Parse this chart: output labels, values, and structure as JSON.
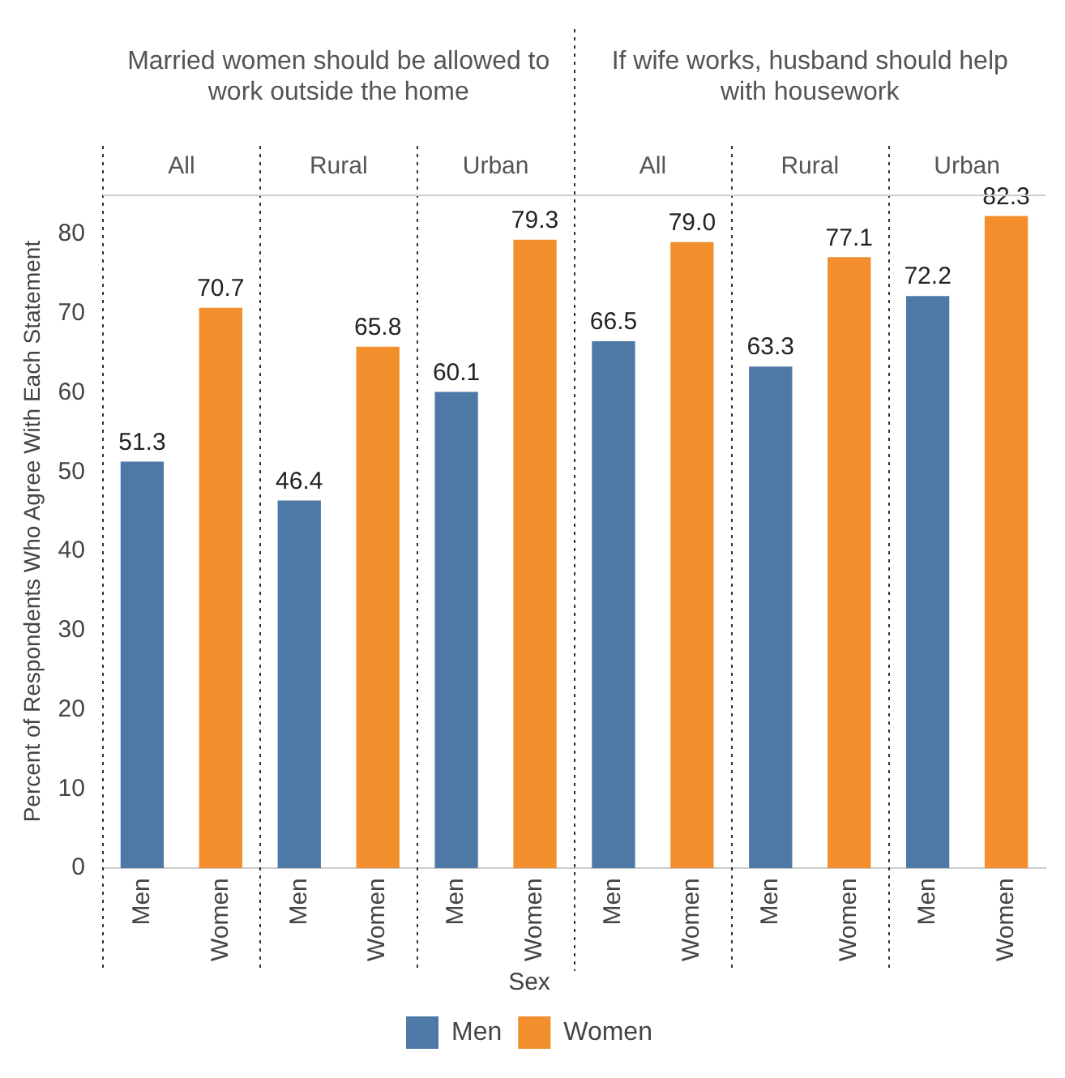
{
  "chart_data": {
    "type": "bar",
    "categories": [
      "Men",
      "Women",
      "Men",
      "Women",
      "Men",
      "Women",
      "Men",
      "Women",
      "Men",
      "Women",
      "Men",
      "Women"
    ],
    "series": [
      {
        "name": "Men",
        "color": "#4e79a7",
        "values": [
          51.3,
          null,
          46.4,
          null,
          60.1,
          null,
          66.5,
          null,
          63.3,
          null,
          72.2,
          null
        ],
        "value_labels": [
          "51.3",
          null,
          "46.4",
          null,
          "60.1",
          null,
          "66.5",
          null,
          "63.3",
          null,
          "72.2",
          null
        ]
      },
      {
        "name": "Women",
        "color": "#f28e2b",
        "values": [
          null,
          70.7,
          null,
          65.8,
          null,
          79.3,
          null,
          79.0,
          null,
          77.1,
          null,
          82.3
        ],
        "value_labels": [
          null,
          "70.7",
          null,
          "65.8",
          null,
          "79.3",
          null,
          "79.0",
          null,
          "77.1",
          null,
          "82.3"
        ]
      }
    ],
    "ylabel": "Percent of Respondents Who Agree With Each Statement",
    "ylim": [
      0,
      85
    ],
    "yticks": [
      0,
      10,
      20,
      30,
      40,
      50,
      60,
      70,
      80
    ],
    "annotations": [
      "Married women should be allowed to work outside the home",
      "If wife works, husband should help with housework",
      "All",
      "Rural",
      "Urban",
      "All",
      "Rural",
      "Urban"
    ],
    "legend_title": "Sex",
    "legend": "bottom",
    "grid": false
  }
}
